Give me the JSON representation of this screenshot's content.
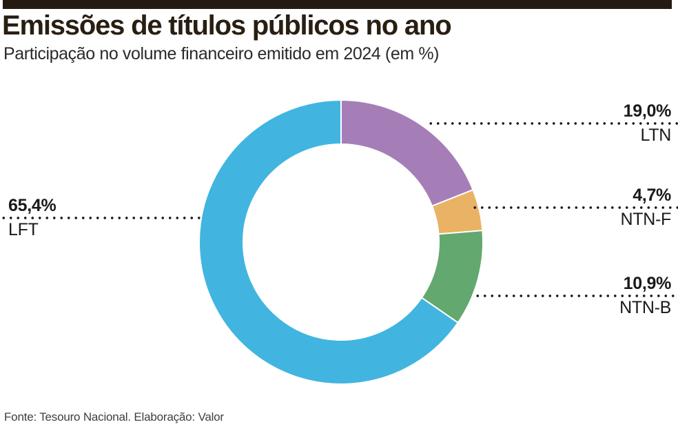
{
  "header": {
    "title": "Emissões de títulos públicos no ano",
    "subtitle": "Participação no volume financeiro emitido em 2024 (em %)"
  },
  "chart_data": {
    "type": "pie",
    "style": "donut",
    "title": "Emissões de títulos públicos no ano",
    "subtitle": "Participação no volume financeiro emitido em 2024 (em %)",
    "unit": "%",
    "start_angle_deg": 0,
    "direction": "clockwise",
    "slices": [
      {
        "label": "LTN",
        "value": 19.0,
        "display": "19,0%",
        "color": "#a57eb7",
        "callout_side": "right"
      },
      {
        "label": "NTN-F",
        "value": 4.7,
        "display": "4,7%",
        "color": "#eab264",
        "callout_side": "right"
      },
      {
        "label": "NTN-B",
        "value": 10.9,
        "display": "10,9%",
        "color": "#63a86e",
        "callout_side": "right"
      },
      {
        "label": "LFT",
        "value": 65.4,
        "display": "65,4%",
        "color": "#41b5e0",
        "callout_side": "left"
      }
    ]
  },
  "footer": {
    "source": "Fonte: Tesouro Nacional. Elaboração: Valor"
  }
}
